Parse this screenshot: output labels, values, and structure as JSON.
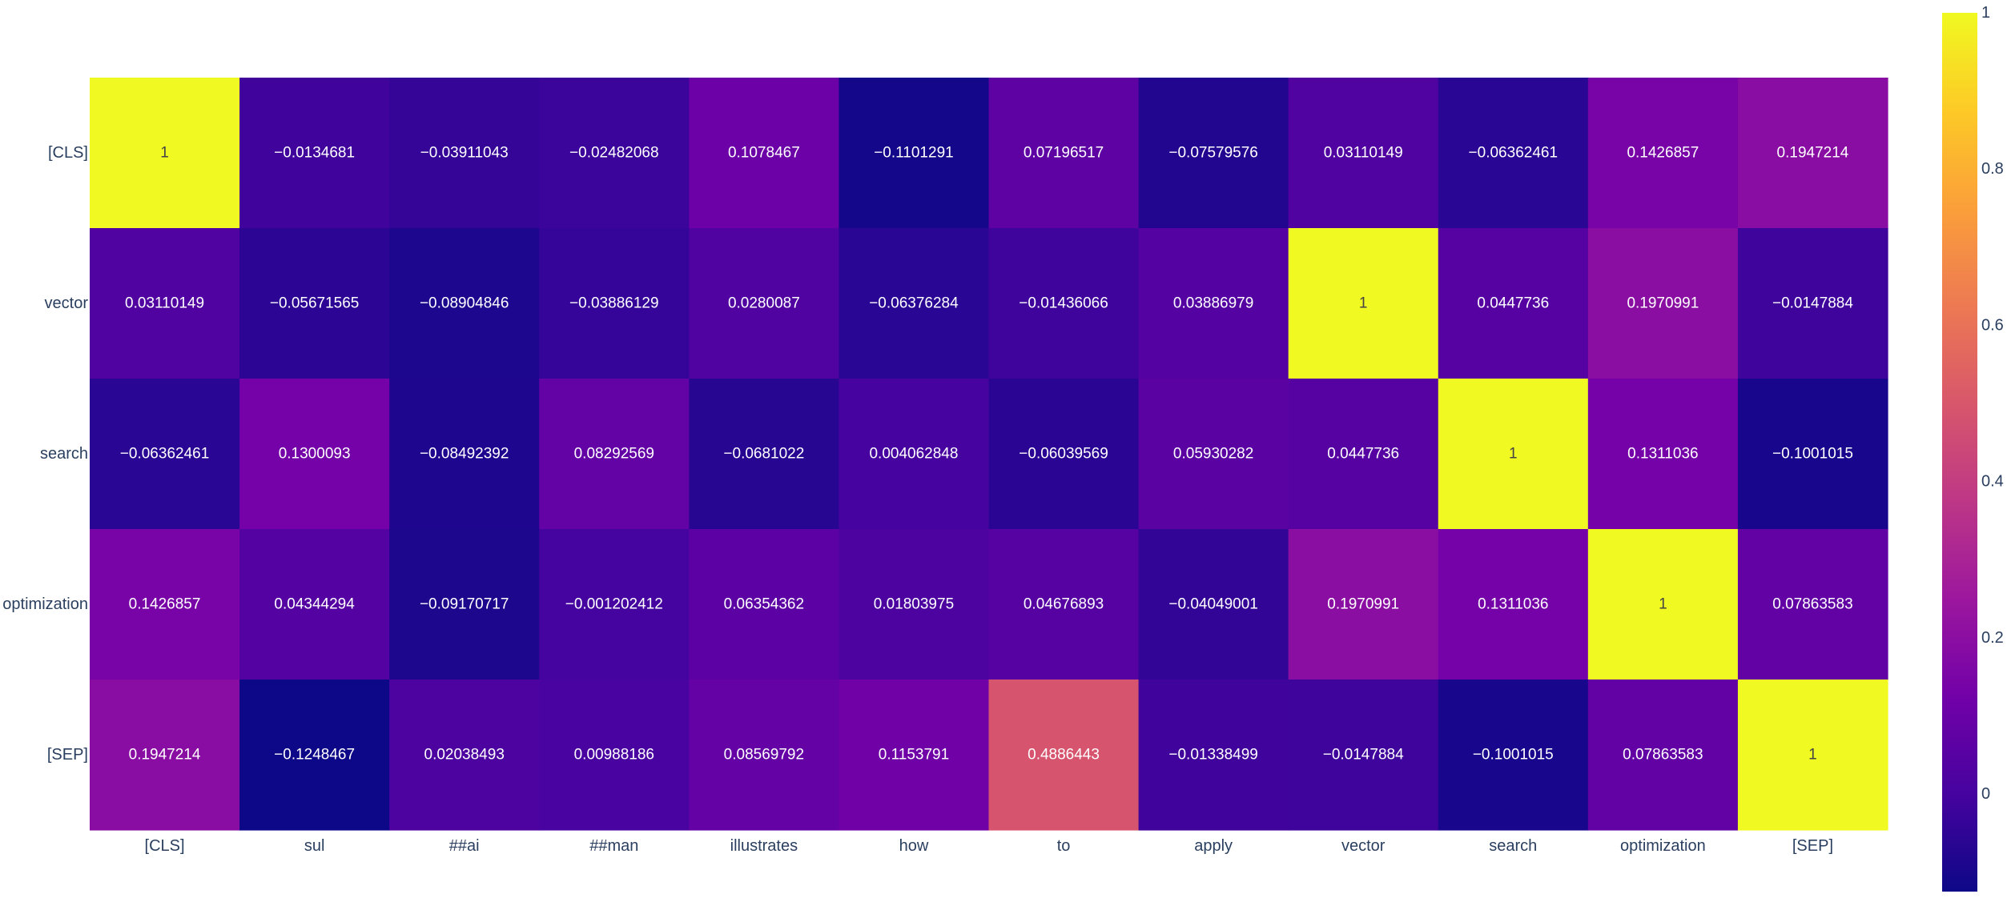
{
  "chart_data": {
    "type": "heatmap",
    "title": "",
    "xlabel": "",
    "ylabel": "",
    "x": [
      "[CLS]",
      "sul",
      "##ai",
      "##man",
      "illustrates",
      "how",
      "to",
      "apply",
      "vector",
      "search",
      "optimization",
      "[SEP]"
    ],
    "y": [
      "[CLS]",
      "vector",
      "search",
      "optimization",
      "[SEP]"
    ],
    "z": [
      [
        1,
        -0.0134681,
        -0.03911043,
        -0.02482068,
        0.1078467,
        -0.1101291,
        0.07196517,
        -0.07579576,
        0.03110149,
        -0.06362461,
        0.1426857,
        0.1947214
      ],
      [
        0.03110149,
        -0.05671565,
        -0.08904846,
        -0.03886129,
        0.0280087,
        -0.06376284,
        -0.01436066,
        0.03886979,
        1,
        0.0447736,
        0.1970991,
        -0.0147884
      ],
      [
        -0.06362461,
        0.1300093,
        -0.08492392,
        0.08292569,
        -0.0681022,
        0.004062848,
        -0.06039569,
        0.05930282,
        0.0447736,
        1,
        0.1311036,
        -0.1001015
      ],
      [
        0.1426857,
        0.04344294,
        -0.09170717,
        -0.001202412,
        0.06354362,
        0.01803975,
        0.04676893,
        -0.04049001,
        0.1970991,
        0.1311036,
        1,
        0.07863583
      ],
      [
        0.1947214,
        -0.1248467,
        0.02038493,
        0.00988186,
        0.08569792,
        0.1153791,
        0.4886443,
        -0.01338499,
        -0.0147884,
        -0.1001015,
        0.07863583,
        1
      ]
    ],
    "text": [
      [
        "1",
        "−0.0134681",
        "−0.03911043",
        "−0.02482068",
        "0.1078467",
        "−0.1101291",
        "0.07196517",
        "−0.07579576",
        "0.03110149",
        "−0.06362461",
        "0.1426857",
        "0.1947214"
      ],
      [
        "0.03110149",
        "−0.05671565",
        "−0.08904846",
        "−0.03886129",
        "0.0280087",
        "−0.06376284",
        "−0.01436066",
        "0.03886979",
        "1",
        "0.0447736",
        "0.1970991",
        "−0.0147884"
      ],
      [
        "−0.06362461",
        "0.1300093",
        "−0.08492392",
        "0.08292569",
        "−0.0681022",
        "0.004062848",
        "−0.06039569",
        "0.05930282",
        "0.0447736",
        "1",
        "0.1311036",
        "−0.1001015"
      ],
      [
        "0.1426857",
        "0.04344294",
        "−0.09170717",
        "−0.001202412",
        "0.06354362",
        "0.01803975",
        "0.04676893",
        "−0.04049001",
        "0.1970991",
        "0.1311036",
        "1",
        "0.07863583"
      ],
      [
        "0.1947214",
        "−0.1248467",
        "0.02038493",
        "0.00988186",
        "0.08569792",
        "0.1153791",
        "0.4886443",
        "−0.01338499",
        "−0.0147884",
        "−0.1001015",
        "0.07863583",
        "1"
      ]
    ],
    "zmin": -0.1248467,
    "zmax": 1,
    "colorscale": "Plasma",
    "colorscale_stops": [
      "#0d0887",
      "#46039f",
      "#7201a8",
      "#9c179e",
      "#bd3786",
      "#d8576b",
      "#ed7953",
      "#fb9f3a",
      "#fdca26",
      "#f0f921"
    ],
    "colorbar": {
      "ticks": [
        0,
        0.2,
        0.4,
        0.6,
        0.8,
        1
      ],
      "tick_labels": [
        "0",
        "0.2",
        "0.4",
        "0.6",
        "0.8",
        "1"
      ]
    },
    "grid": false,
    "legend": "none"
  }
}
